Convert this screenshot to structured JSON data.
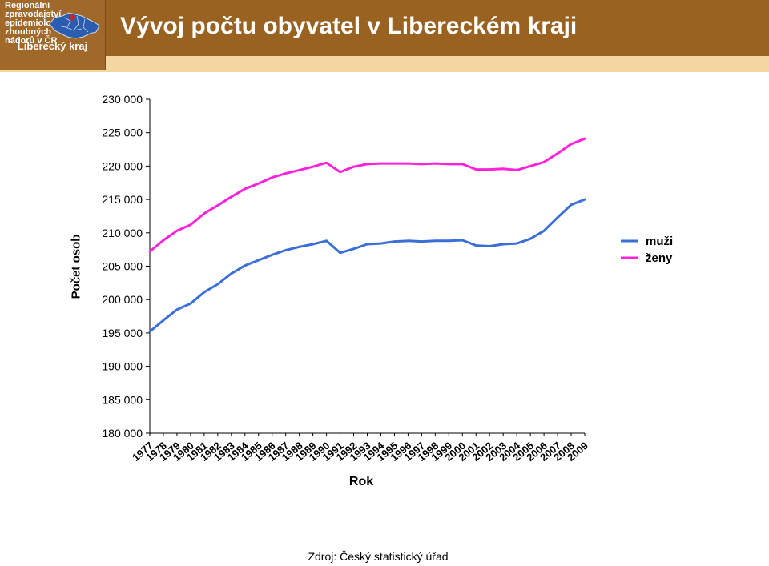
{
  "header": {
    "logo_lines": [
      "Regionální zpravodajství",
      "epidemiologie",
      "zhoubných",
      "nádorů v ČR"
    ],
    "logo_region": "Liberecký kraj",
    "title": "Vývoj počtu obyvatel v Libereckém kraji",
    "band_color": "#9a6221",
    "light_color": "#f4d6a0"
  },
  "source": "Zdroj: Český statistický úřad",
  "chart_data": {
    "type": "line",
    "title": "",
    "xlabel": "Rok",
    "ylabel": "Počet osob",
    "ylim": [
      180000,
      230000
    ],
    "yticks": [
      180000,
      185000,
      190000,
      195000,
      200000,
      205000,
      210000,
      215000,
      220000,
      225000,
      230000
    ],
    "ytick_labels": [
      "180 000",
      "185 000",
      "190 000",
      "195 000",
      "200 000",
      "205 000",
      "210 000",
      "215 000",
      "220 000",
      "225 000",
      "230 000"
    ],
    "grid": false,
    "legend_position": "right",
    "categories": [
      "1977",
      "1978",
      "1979",
      "1980",
      "1981",
      "1982",
      "1983",
      "1984",
      "1985",
      "1986",
      "1987",
      "1988",
      "1989",
      "1990",
      "1991",
      "1992",
      "1993",
      "1994",
      "1995",
      "1996",
      "1997",
      "1998",
      "1999",
      "2000",
      "2001",
      "2002",
      "2003",
      "2004",
      "2005",
      "2006",
      "2007",
      "2008",
      "2009"
    ],
    "series": [
      {
        "name": "muži",
        "color": "#3a6fd8",
        "values": [
          195200,
          196900,
          198500,
          199400,
          201100,
          202300,
          203900,
          205100,
          205900,
          206700,
          207400,
          207900,
          208300,
          208800,
          207000,
          207600,
          208300,
          208400,
          208700,
          208800,
          208700,
          208800,
          208800,
          208900,
          208100,
          208000,
          208300,
          208400,
          209100,
          210300,
          212300,
          214200,
          215000
        ]
      },
      {
        "name": "ženy",
        "color": "#ff22dd",
        "values": [
          207200,
          208900,
          210300,
          211200,
          212900,
          214100,
          215400,
          216600,
          217400,
          218300,
          218900,
          219400,
          219900,
          220500,
          219100,
          219900,
          220300,
          220400,
          220400,
          220400,
          220300,
          220400,
          220300,
          220300,
          219500,
          219500,
          219600,
          219400,
          220000,
          220600,
          221900,
          223300,
          224100
        ]
      }
    ]
  }
}
